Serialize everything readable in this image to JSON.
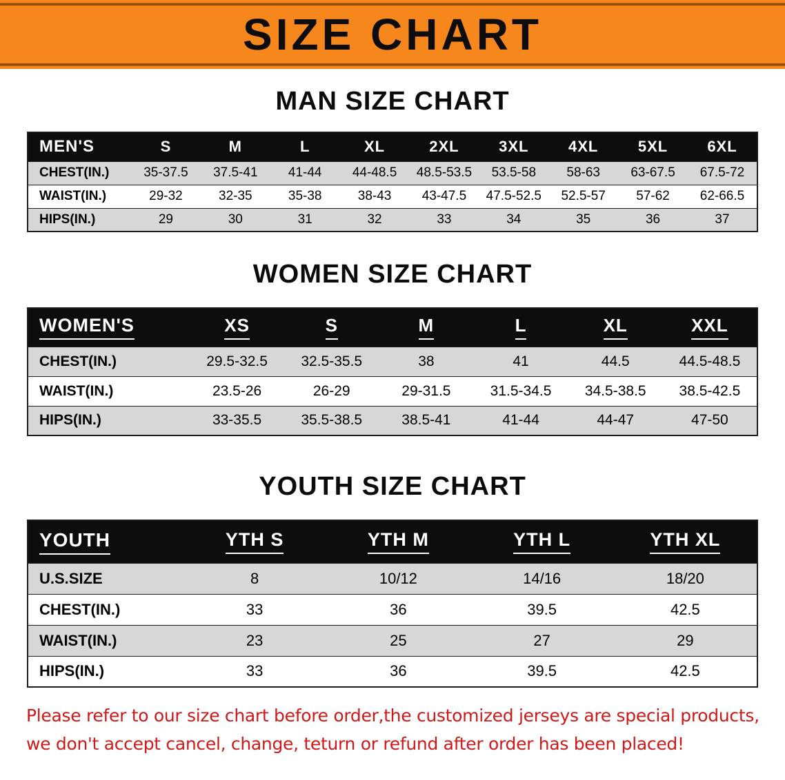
{
  "banner": {
    "title": "SIZE CHART"
  },
  "colors": {
    "banner_orange": "#f6871d",
    "banner_edge": "#8f4e09",
    "header_bg": "#0d0d0d",
    "row_shade": "#d7d7d7",
    "table_border": "#1c1c1c",
    "note_red": "#d01818"
  },
  "sections": [
    {
      "id": "men",
      "heading": "MAN SIZE CHART",
      "table": {
        "header": [
          "MEN'S",
          "S",
          "M",
          "L",
          "XL",
          "2XL",
          "3XL",
          "4XL",
          "5XL",
          "6XL"
        ],
        "rows": [
          [
            "CHEST(IN.)",
            "35-37.5",
            "37.5-41",
            "41-44",
            "44-48.5",
            "48.5-53.5",
            "53.5-58",
            "58-63",
            "63-67.5",
            "67.5-72"
          ],
          [
            "WAIST(IN.)",
            "29-32",
            "32-35",
            "35-38",
            "38-43",
            "43-47.5",
            "47.5-52.5",
            "52.5-57",
            "57-62",
            "62-66.5"
          ],
          [
            "HIPS(IN.)",
            "29",
            "30",
            "31",
            "32",
            "33",
            "34",
            "35",
            "36",
            "37"
          ]
        ]
      }
    },
    {
      "id": "women",
      "heading": "WOMEN SIZE CHART",
      "table": {
        "header": [
          "WOMEN'S",
          "XS",
          "S",
          "M",
          "L",
          "XL",
          "XXL"
        ],
        "rows": [
          [
            "CHEST(IN.)",
            "29.5-32.5",
            "32.5-35.5",
            "38",
            "41",
            "44.5",
            "44.5-48.5"
          ],
          [
            "WAIST(IN.)",
            "23.5-26",
            "26-29",
            "29-31.5",
            "31.5-34.5",
            "34.5-38.5",
            "38.5-42.5"
          ],
          [
            "HIPS(IN.)",
            "33-35.5",
            "35.5-38.5",
            "38.5-41",
            "41-44",
            "44-47",
            "47-50"
          ]
        ]
      }
    },
    {
      "id": "youth",
      "heading": "YOUTH SIZE CHART",
      "table": {
        "header": [
          "YOUTH",
          "YTH S",
          "YTH M",
          "YTH L",
          "YTH XL"
        ],
        "rows": [
          [
            "U.S.SIZE",
            "8",
            "10/12",
            "14/16",
            "18/20"
          ],
          [
            "CHEST(IN.)",
            "33",
            "36",
            "39.5",
            "42.5"
          ],
          [
            "WAIST(IN.)",
            "23",
            "25",
            "27",
            "29"
          ],
          [
            "HIPS(IN.)",
            "33",
            "36",
            "39.5",
            "42.5"
          ]
        ]
      }
    }
  ],
  "footer": {
    "line1": "Please refer to our size chart before order,the customized jerseys are special products,",
    "line2": "we don't accept cancel, change, teturn or refund after order has been placed!"
  }
}
